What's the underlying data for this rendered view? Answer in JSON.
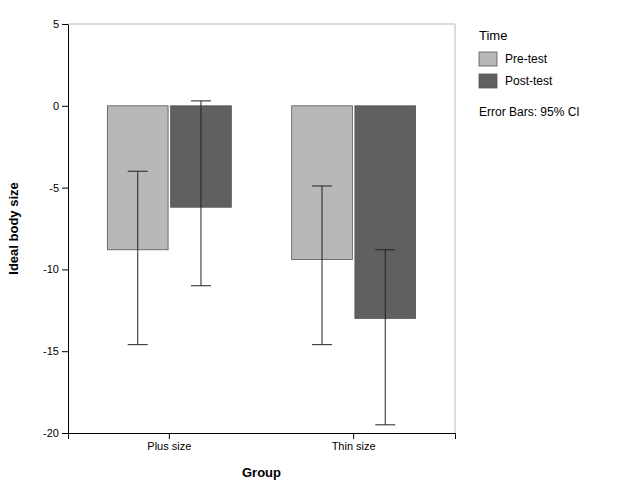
{
  "chart_data": {
    "type": "bar",
    "categories": [
      "Plus size",
      "Thin size"
    ],
    "series": [
      {
        "name": "Pre-test",
        "color": "#b8b8b8",
        "values": [
          -8.8,
          -9.4
        ],
        "error_upper": [
          4.8,
          4.5
        ],
        "error_lower": [
          5.8,
          5.2
        ]
      },
      {
        "name": "Post-test",
        "color": "#606060",
        "values": [
          -6.2,
          -13.0
        ],
        "error_upper": [
          6.5,
          4.2
        ],
        "error_lower": [
          4.8,
          6.5
        ]
      }
    ],
    "x_label": "Group",
    "y_label": "Ideal body size",
    "legend_title": "Time",
    "annotations": [
      "Error Bars: 95% CI"
    ],
    "ylim": [
      -20,
      5
    ],
    "yticks": [
      5,
      0,
      -5,
      -10,
      -15,
      -20
    ],
    "grid": false,
    "legend": "right"
  }
}
